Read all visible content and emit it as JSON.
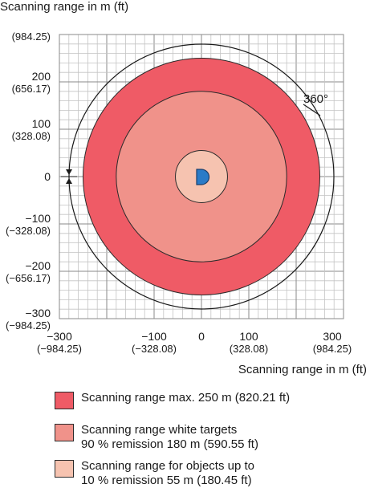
{
  "y_axis_title": "Scanning range in m (ft)",
  "x_axis_title": "Scanning range in m (ft)",
  "y_ticks": [
    {
      "value": 300,
      "label": "",
      "sub": "(984.25)"
    },
    {
      "value": 200,
      "label": "200",
      "sub": "(656.17)"
    },
    {
      "value": 100,
      "label": "100",
      "sub": "(328.08)"
    },
    {
      "value": 0,
      "label": "0",
      "sub": ""
    },
    {
      "value": -100,
      "label": "−100",
      "sub": "(−328.08)"
    },
    {
      "value": -200,
      "label": "−200",
      "sub": "(−656.17)"
    },
    {
      "value": -300,
      "label": "−300",
      "sub": "(−984.25)"
    }
  ],
  "x_ticks": [
    {
      "value": -300,
      "label": "−300",
      "sub": "(−984.25)"
    },
    {
      "value": -100,
      "label": "−100",
      "sub": "(−328.08)"
    },
    {
      "value": 0,
      "label": "0",
      "sub": ""
    },
    {
      "value": 100,
      "label": "100",
      "sub": "(328.08)"
    },
    {
      "value": 300,
      "label": "300",
      "sub": "(984.25)"
    }
  ],
  "angle_label": "360°",
  "sensor_label": "D",
  "ranges": [
    {
      "radius_m": 250,
      "color": "#ef5b66"
    },
    {
      "radius_m": 180,
      "color": "#f0928a"
    },
    {
      "radius_m": 55,
      "color": "#f6c3b0"
    }
  ],
  "legend": [
    {
      "lines": [
        "Scanning range max. 250 m (820.21 ft)"
      ],
      "color": "#ef5b66"
    },
    {
      "lines": [
        "Scanning range white targets",
        "90 % remission 180 m (590.55 ft)"
      ],
      "color": "#f0928a"
    },
    {
      "lines": [
        "Scanning range for objects up to",
        "10 % remission 55 m (180.45 ft)"
      ],
      "color": "#f6c3b0"
    }
  ]
}
